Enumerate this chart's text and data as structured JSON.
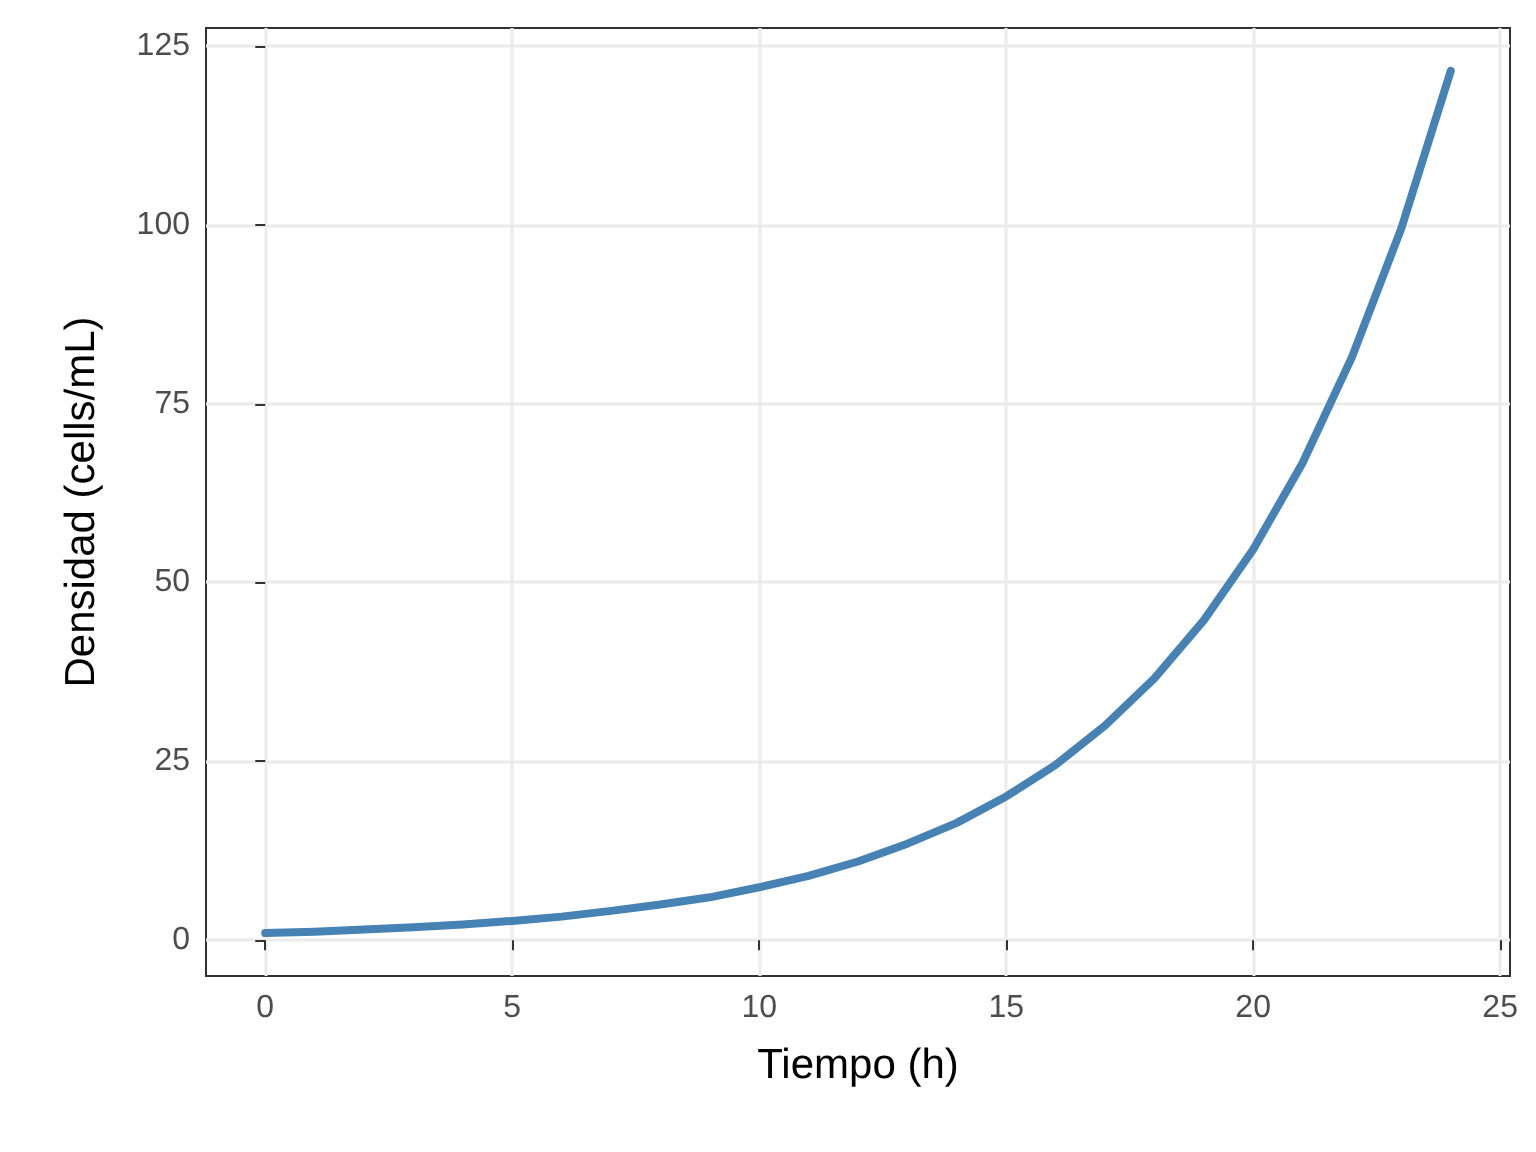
{
  "chart_data": {
    "type": "line",
    "xlabel": "Tiempo (h)",
    "ylabel": "Densidad (cells/mL)",
    "x": [
      0,
      1,
      2,
      3,
      4,
      5,
      6,
      7,
      8,
      9,
      10,
      11,
      12,
      13,
      14,
      15,
      16,
      17,
      18,
      19,
      20,
      21,
      22,
      23,
      24
    ],
    "series": [
      {
        "color": "#4682b4",
        "values": [
          1.0,
          1.2,
          1.5,
          1.8,
          2.2,
          2.7,
          3.3,
          4.1,
          5.0,
          6.0,
          7.4,
          9.0,
          11.0,
          13.5,
          16.4,
          20.1,
          24.5,
          30.0,
          36.6,
          44.7,
          54.6,
          66.7,
          81.5,
          99.5,
          121.5
        ]
      }
    ],
    "xlim": [
      -1.2,
      25.2
    ],
    "xticks": [
      0,
      5,
      10,
      15,
      20,
      25
    ],
    "ylim": [
      -5,
      127.5
    ],
    "yticks": [
      0,
      25,
      50,
      75,
      100,
      125
    ],
    "grid": true,
    "marker": "none",
    "line_style": "solid"
  }
}
